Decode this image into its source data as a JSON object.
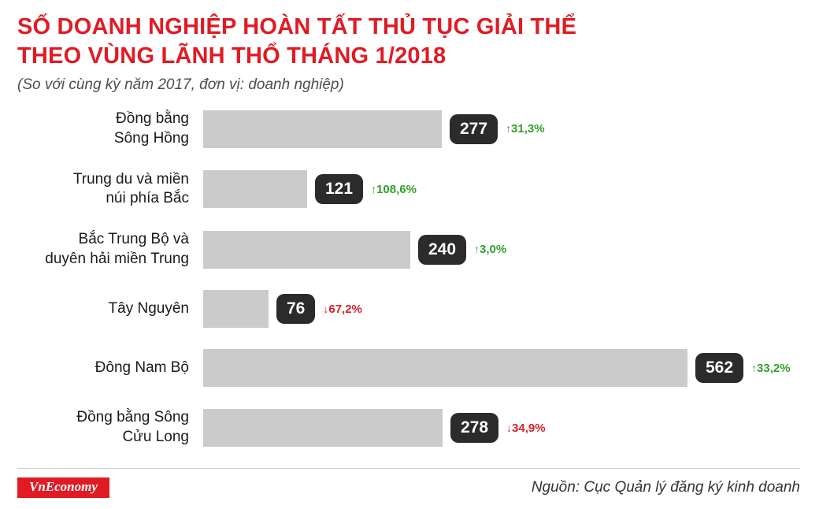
{
  "header": {
    "title_line1": "SỐ DOANH NGHIỆP HOÀN TẤT THỦ TỤC GIẢI THỂ",
    "title_line2": "THEO VÙNG LÃNH THỔ THÁNG 1/2018",
    "subtitle": "(So với cùng kỳ năm 2017, đơn vị: doanh nghiệp)"
  },
  "chart_data": {
    "type": "bar",
    "orientation": "horizontal",
    "title": "SỐ DOANH NGHIỆP HOÀN TẤT THỦ TỤC GIẢI THỂ THEO VÙNG LÃNH THỔ THÁNG 1/2018",
    "subtitle": "(So với cùng kỳ năm 2017, đơn vị: doanh nghiệp)",
    "unit": "doanh nghiệp",
    "categories": [
      "Đồng bằng Sông Hồng",
      "Trung du và miền núi phía Bắc",
      "Bắc Trung Bộ và duyên hải miền Trung",
      "Tây Nguyên",
      "Đông Nam Bộ",
      "Đồng bằng Sông Cửu Long"
    ],
    "label_lines": [
      [
        "Đồng bằng",
        "Sông Hồng"
      ],
      [
        "Trung du và miền",
        "núi phía Bắc"
      ],
      [
        "Bắc Trung Bộ và",
        "duyên hải miền Trung"
      ],
      [
        "Tây Nguyên"
      ],
      [
        "Đông Nam Bộ"
      ],
      [
        "Đồng bằng Sông",
        "Cửu Long"
      ]
    ],
    "values": [
      277,
      121,
      240,
      76,
      562,
      278
    ],
    "changes": [
      {
        "direction": "up",
        "label": "31,3%"
      },
      {
        "direction": "up",
        "label": "108,6%"
      },
      {
        "direction": "up",
        "label": "3,0%"
      },
      {
        "direction": "down",
        "label": "67,2%"
      },
      {
        "direction": "up",
        "label": "33,2%"
      },
      {
        "direction": "down",
        "label": "34,9%"
      }
    ],
    "xlim": [
      0,
      562
    ],
    "grid": false,
    "legend": false
  },
  "icons": {
    "up_arrow": "↑",
    "down_arrow": "↓"
  },
  "colors": {
    "title": "#e01b24",
    "bar": "#cbcbcb",
    "badge": "#2b2b2b",
    "up": "#33a02c",
    "down": "#d2232a",
    "logo_bg": "#e01b24"
  },
  "footer": {
    "logo": "VnEconomy",
    "source": "Nguồn: Cục Quản lý đăng ký kinh doanh"
  }
}
